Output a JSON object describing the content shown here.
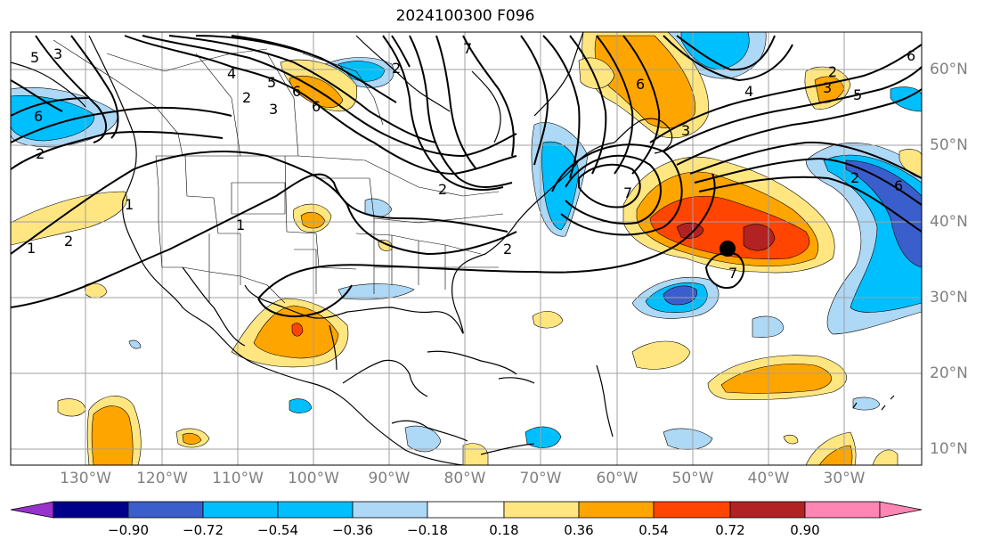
{
  "title": "2024100300 F096",
  "lon_labels": [
    "130°W",
    "120°W",
    "110°W",
    "100°W",
    "90°W",
    "80°W",
    "70°W",
    "60°W",
    "50°W",
    "40°W",
    "30°W"
  ],
  "lat_labels": [
    "60°N",
    "50°N",
    "40°N",
    "30°N",
    "20°N",
    "10°N"
  ],
  "colorbar": {
    "tick_labels": [
      "−0.90",
      "−0.72",
      "−0.54",
      "−0.36",
      "−0.18",
      "0.18",
      "0.36",
      "0.54",
      "0.72",
      "0.90"
    ],
    "colors": [
      "#9932cc",
      "#00008b",
      "#3a5fcd",
      "#00bfff",
      "#add8f6",
      "#ffffff",
      "#ffe680",
      "#ffa500",
      "#ff4500",
      "#b22222",
      "#ff85b4"
    ]
  },
  "contour_labels": [
    "3",
    "5",
    "6",
    "1",
    "2",
    "6",
    "6",
    "5",
    "3",
    "2",
    "4",
    "6",
    "7",
    "2",
    "6",
    "4",
    "2",
    "3",
    "5",
    "6",
    "2",
    "1",
    "2",
    "1",
    "2",
    "2",
    "3",
    "7",
    "7"
  ],
  "marker": "storm-center"
}
